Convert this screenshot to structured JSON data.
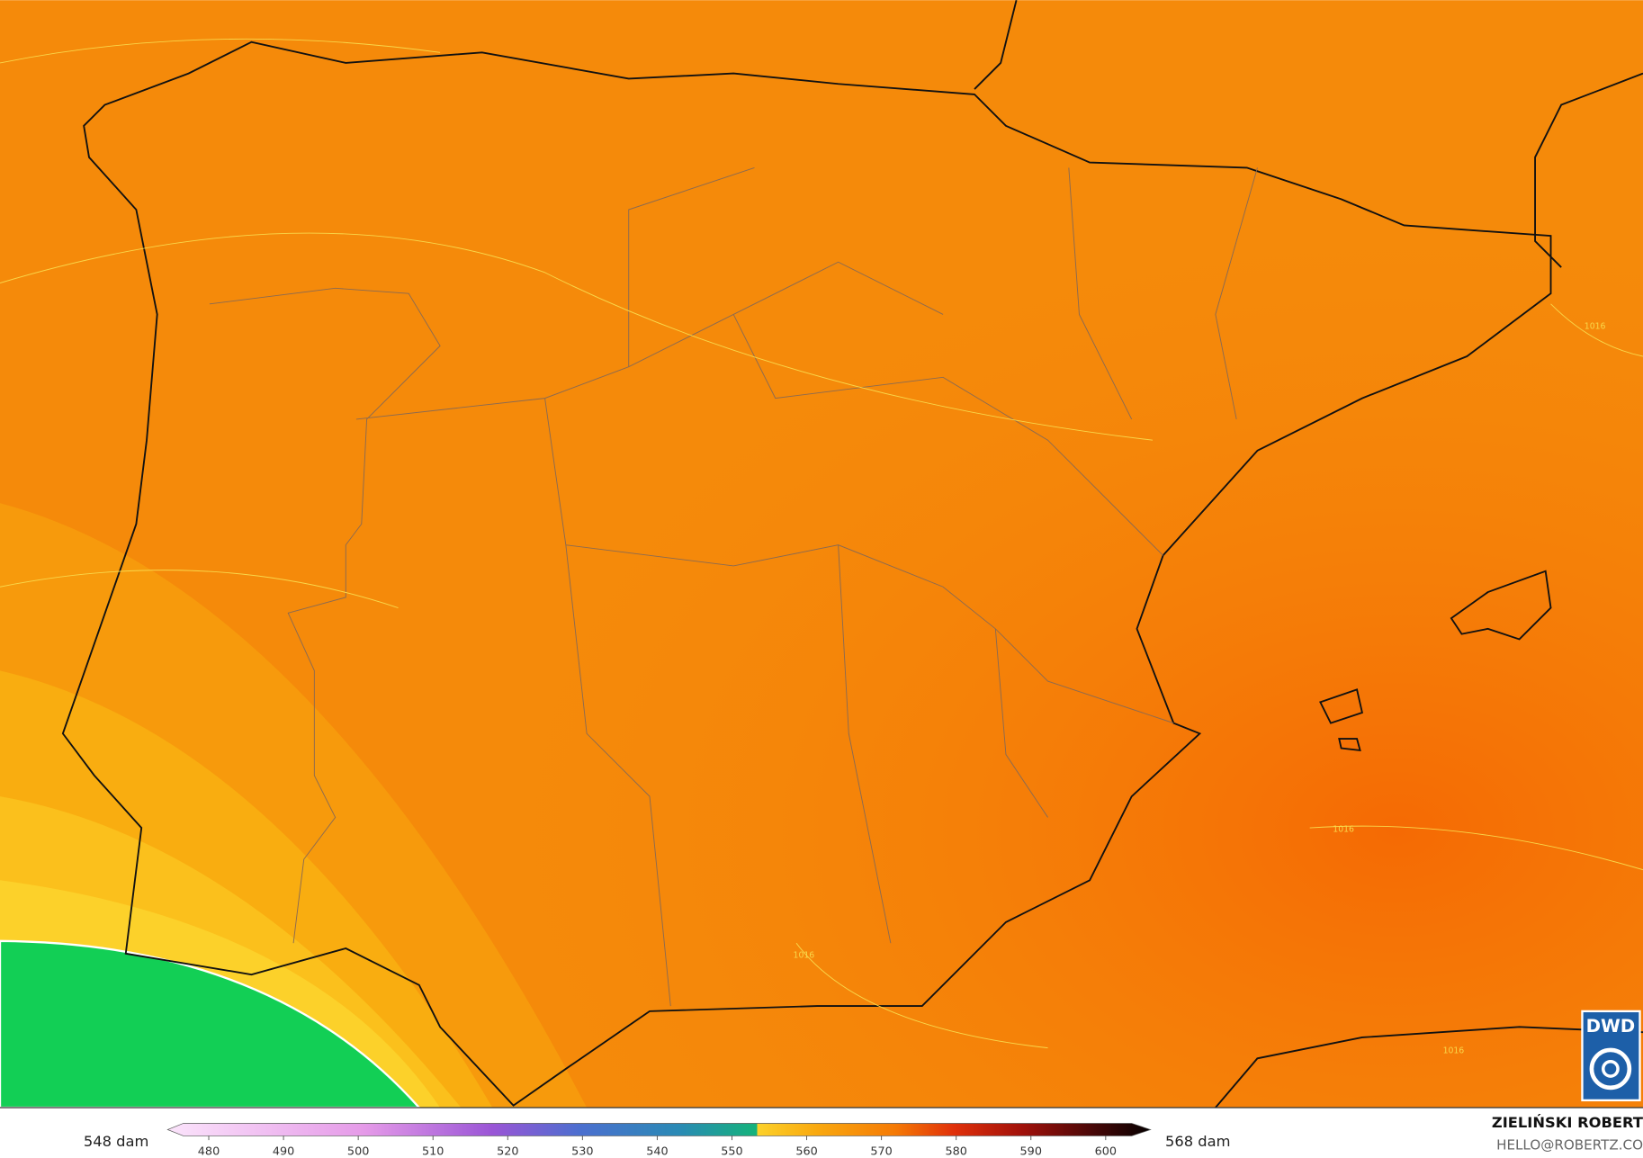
{
  "legend": {
    "min_label": "548 dam",
    "max_label": "568 dam",
    "range": [
      474.5,
      606
    ],
    "ticks": [
      480,
      490,
      500,
      510,
      520,
      530,
      540,
      550,
      560,
      570,
      580,
      590,
      600
    ]
  },
  "credit": {
    "name": "ZIELIŃSKI ROBERT",
    "contact": "HELLO@ROBERTZ.CO"
  },
  "logo": "DWD",
  "contour_labels": [
    "1016",
    "1016",
    "1016",
    "1016"
  ]
}
